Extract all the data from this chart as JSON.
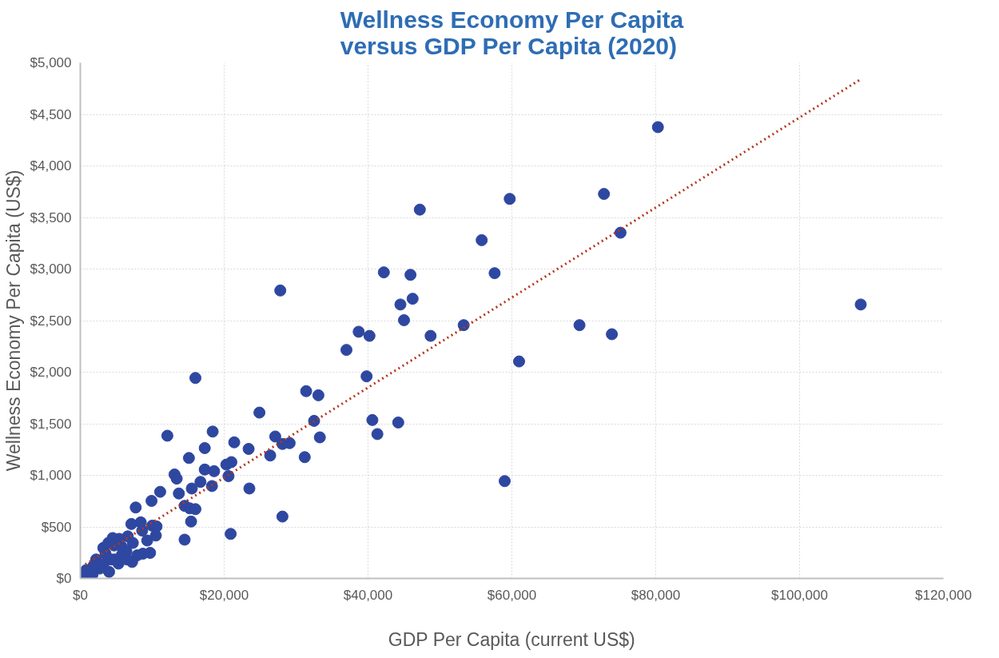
{
  "chart_data": {
    "type": "scatter",
    "title": "Wellness Economy Per Capita versus GDP Per Capita (2020)",
    "xlabel": "GDP Per Capita (current US$)",
    "ylabel": "Wellness Economy Per Capita (US$)",
    "xlim": [
      0,
      120000
    ],
    "ylim": [
      0,
      5000
    ],
    "xticks": [
      {
        "value": 0,
        "label": "$0"
      },
      {
        "value": 20000,
        "label": "$20,000"
      },
      {
        "value": 40000,
        "label": "$40,000"
      },
      {
        "value": 60000,
        "label": "$60,000"
      },
      {
        "value": 80000,
        "label": "$80,000"
      },
      {
        "value": 100000,
        "label": "$100,000"
      },
      {
        "value": 120000,
        "label": "$120,000"
      }
    ],
    "yticks": [
      {
        "value": 0,
        "label": "$0"
      },
      {
        "value": 500,
        "label": "$500"
      },
      {
        "value": 1000,
        "label": "$1,000"
      },
      {
        "value": 1500,
        "label": "$1,500"
      },
      {
        "value": 2000,
        "label": "$2,000"
      },
      {
        "value": 2500,
        "label": "$2,500"
      },
      {
        "value": 3000,
        "label": "$3,000"
      },
      {
        "value": 3500,
        "label": "$3,500"
      },
      {
        "value": 4000,
        "label": "$4,000"
      },
      {
        "value": 4500,
        "label": "$4,500"
      },
      {
        "value": 5000,
        "label": "$5,000"
      }
    ],
    "grid": true,
    "series": [
      {
        "color": "#2e47a0",
        "marker": "circle",
        "x": [
          80300,
          72800,
          59700,
          47200,
          75100,
          55800,
          42200,
          45900,
          57600,
          27800,
          46200,
          44500,
          108500,
          45000,
          53300,
          69400,
          38700,
          40200,
          48700,
          73900,
          37000,
          61000,
          39800,
          16000,
          31400,
          33100,
          24900,
          40600,
          32500,
          44200,
          41300,
          12100,
          33300,
          27100,
          18400,
          21400,
          29100,
          28100,
          17300,
          23400,
          26400,
          31200,
          15100,
          21000,
          20300,
          17300,
          18600,
          13100,
          20600,
          13400,
          16700,
          59000,
          18300,
          15500,
          23500,
          11100,
          13700,
          9900,
          14500,
          15200,
          16000,
          7700,
          28100,
          15400,
          8400,
          7100,
          10000,
          10600,
          20900,
          14500,
          10500,
          9300,
          8600,
          6600,
          5400,
          4500,
          4700,
          3200,
          7300,
          9700,
          8700,
          6400,
          7900,
          7200,
          5300,
          4000,
          2200,
          2700,
          600,
          1700,
          5800,
          4300,
          1800,
          800,
          3200,
          4800,
          6500,
          5700,
          3900,
          3500
        ],
        "values": [
          4376,
          3728,
          3680,
          3576,
          3352,
          3280,
          2968,
          2944,
          2960,
          2792,
          2712,
          2656,
          2656,
          2504,
          2456,
          2456,
          2392,
          2352,
          2352,
          2368,
          2216,
          2104,
          1960,
          1944,
          1816,
          1776,
          1608,
          1536,
          1528,
          1512,
          1400,
          1384,
          1368,
          1376,
          1424,
          1320,
          1312,
          1304,
          1264,
          1256,
          1192,
          1176,
          1168,
          1128,
          1104,
          1056,
          1040,
          1008,
          992,
          968,
          936,
          944,
          896,
          872,
          872,
          840,
          824,
          752,
          704,
          680,
          672,
          688,
          600,
          552,
          544,
          528,
          512,
          504,
          432,
          376,
          416,
          368,
          464,
          408,
          384,
          392,
          320,
          296,
          344,
          248,
          240,
          264,
          224,
          160,
          144,
          64,
          184,
          96,
          24,
          40,
          232,
          184,
          120,
          80,
          136,
          184,
          184,
          312,
          344,
          240
        ]
      },
      {
        "type": "line",
        "color": "#b5361c",
        "line_style": "dotted",
        "x": [
          700,
          108500
        ],
        "values": [
          136,
          4840
        ]
      }
    ]
  }
}
